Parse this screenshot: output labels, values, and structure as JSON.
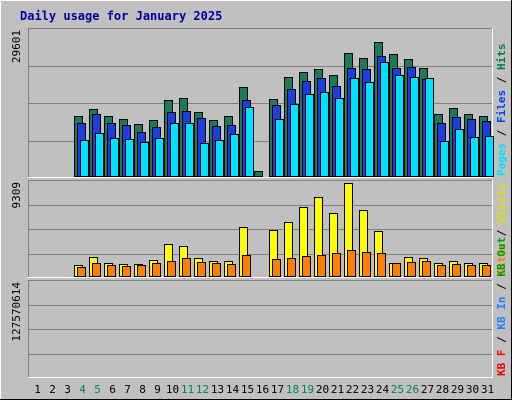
{
  "chart_data": {
    "type": "bar",
    "title": "Daily usage for January 2025",
    "days": [
      "1",
      "2",
      "3",
      "4",
      "5",
      "6",
      "7",
      "8",
      "9",
      "10",
      "11",
      "12",
      "13",
      "14",
      "15",
      "16",
      "17",
      "18",
      "19",
      "20",
      "21",
      "22",
      "23",
      "24",
      "25",
      "26",
      "27",
      "28",
      "29",
      "30",
      "31"
    ],
    "weekend_days": [
      "4",
      "5",
      "11",
      "12",
      "18",
      "19",
      "25",
      "26"
    ],
    "panels": [
      {
        "name": "requests",
        "ymax_label": "29601",
        "ymax": 29601,
        "side_legend": [
          {
            "text": "Hits",
            "color": "#008040"
          },
          {
            "text": " / ",
            "color": "#000000"
          },
          {
            "text": "Files",
            "color": "#0040ff"
          },
          {
            "text": " / ",
            "color": "#000000"
          },
          {
            "text": "Pages",
            "color": "#00e0ff"
          }
        ],
        "series": [
          {
            "key": "hits",
            "color": "#1a7a5a",
            "values": [
              null,
              null,
              null,
              12300,
              13700,
              12300,
              11700,
              10700,
              11600,
              15600,
              16000,
              13200,
              11500,
              12300,
              18200,
              1300,
              15800,
              20200,
              21300,
              21800,
              20700,
              25100,
              24200,
              27300,
              25000,
              24000,
              22100,
              12800,
              14000,
              12800,
              12400
            ]
          },
          {
            "key": "files",
            "color": "#1a3ee0",
            "values": [
              null,
              null,
              null,
              11000,
              12800,
              11000,
              10600,
              9200,
              10200,
              13200,
              13400,
              11900,
              10300,
              10600,
              15700,
              null,
              14500,
              17900,
              19400,
              20000,
              18400,
              22100,
              21900,
              24500,
              22000,
              22400,
              19900,
              11000,
              12200,
              11800,
              11300
            ]
          },
          {
            "key": "pages",
            "color": "#00e0ff",
            "values": [
              null,
              null,
              null,
              7500,
              8900,
              7900,
              7700,
              7000,
              8000,
              11000,
              11000,
              6800,
              7500,
              8700,
              14200,
              null,
              11800,
              14900,
              16800,
              17300,
              16000,
              20000,
              19300,
              23300,
              20600,
              20300,
              20000,
              7200,
              9800,
              8200,
              8300
            ]
          }
        ]
      },
      {
        "name": "visits",
        "ymax_label": "9309",
        "ymax": 9309,
        "side_legend": [
          {
            "text": "Visits",
            "color": "#e0e000"
          },
          {
            "text": " / ",
            "color": "#000000"
          },
          {
            "text": "Sites",
            "color": "#ff8000"
          }
        ],
        "series": [
          {
            "key": "visits",
            "color": "#ffff00",
            "values": [
              null,
              null,
              null,
              1200,
              2000,
              1400,
              1300,
              1300,
              1700,
              3300,
              3100,
              1900,
              1600,
              1600,
              5000,
              null,
              4700,
              5400,
              6900,
              7900,
              6300,
              9300,
              6600,
              4600,
              1400,
              2000,
              1900,
              1400,
              1600,
              1400,
              1400
            ]
          },
          {
            "key": "sites",
            "color": "#ff8000",
            "values": [
              null,
              null,
              null,
              1000,
              1400,
              1200,
              1100,
              1200,
              1400,
              1600,
              1900,
              1500,
              1400,
              1300,
              2200,
              null,
              1800,
              1900,
              2100,
              2200,
              2400,
              2700,
              2500,
              2400,
              1400,
              1500,
              1600,
              1200,
              1300,
              1200,
              1200
            ]
          }
        ]
      },
      {
        "name": "volume",
        "ymax_label": "127570614",
        "ymax": 127570614,
        "side_legend": [
          {
            "text": "KB Out",
            "color": "#00a000"
          },
          {
            "text": " / ",
            "color": "#000000"
          },
          {
            "text": "KB In",
            "color": "#2080ff"
          },
          {
            "text": " / ",
            "color": "#000000"
          },
          {
            "text": "KB F",
            "color": "#ff0000"
          }
        ],
        "series": [
          {
            "key": "kbf",
            "color": "#ff0000",
            "values": [
              null,
              null,
              null,
              23900,
              31500,
              28600,
              28600,
              19100,
              28600,
              33400,
              36300,
              12400,
              19100,
              30600,
              57300,
              1900,
              63000,
              76500,
              91700,
              99400,
              89800,
              127500,
              99400,
              99400,
              76500,
              99400,
              72600,
              24800,
              35300,
              33400,
              34400
            ]
          }
        ]
      }
    ]
  }
}
